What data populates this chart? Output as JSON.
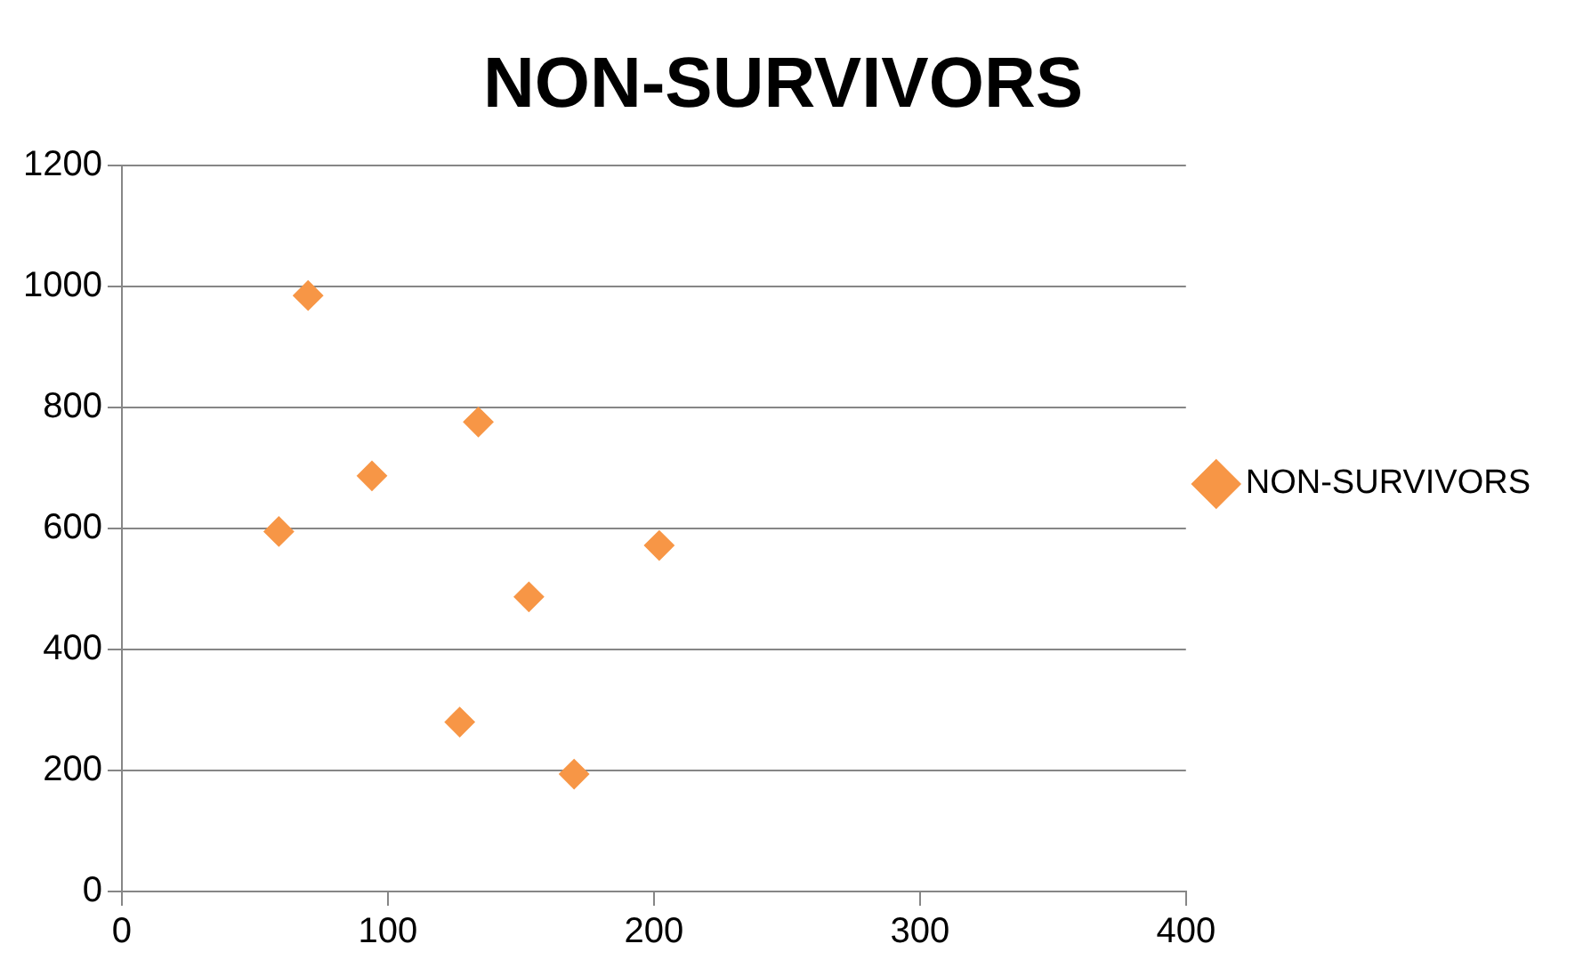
{
  "chart_data": {
    "type": "scatter",
    "title": "NON-SURVIVORS",
    "series": [
      {
        "name": "NON-SURVIVORS",
        "color": "#f79646",
        "x": [
          70,
          134,
          94,
          59,
          202,
          153,
          127,
          170
        ],
        "values": [
          985,
          776,
          687,
          595,
          572,
          487,
          280,
          194
        ]
      }
    ],
    "xlim": [
      0,
      400
    ],
    "xticks": [
      0,
      100,
      200,
      300,
      400
    ],
    "ylim": [
      0,
      1200
    ],
    "yticks": [
      0,
      200,
      400,
      600,
      800,
      1000,
      1200
    ],
    "grid": "y",
    "legend": "right",
    "marker": "diamond"
  }
}
